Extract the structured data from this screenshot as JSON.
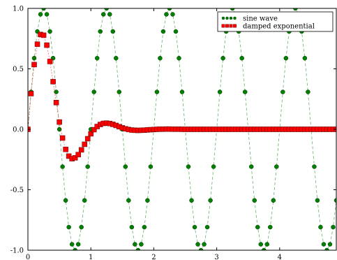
{
  "chart_data": {
    "type": "line",
    "xlim": [
      0,
      4.9
    ],
    "ylim": [
      -1.0,
      1.0
    ],
    "x_ticks": [
      0,
      1,
      2,
      3,
      4
    ],
    "y_ticks": [
      -1.0,
      -0.5,
      0.0,
      0.5,
      1.0
    ],
    "x_tick_labels": [
      "0",
      "1",
      "2",
      "3",
      "4"
    ],
    "y_tick_labels": [
      "-1.0",
      "-0.5",
      "0.0",
      "0.5",
      "1.0"
    ],
    "grid": false,
    "legend_position": "top-right",
    "x": [
      0,
      0.05,
      0.1,
      0.15,
      0.2,
      0.25,
      0.3,
      0.35,
      0.4,
      0.45,
      0.5,
      0.55,
      0.6,
      0.65,
      0.7,
      0.75,
      0.8,
      0.85,
      0.9,
      0.95,
      1.0,
      1.05,
      1.1,
      1.15,
      1.2,
      1.25,
      1.3,
      1.35,
      1.4,
      1.45,
      1.5,
      1.55,
      1.6,
      1.65,
      1.7,
      1.75,
      1.8,
      1.85,
      1.9,
      1.95,
      2.0,
      2.05,
      2.1,
      2.15,
      2.2,
      2.25,
      2.3,
      2.35,
      2.4,
      2.45,
      2.5,
      2.55,
      2.6,
      2.65,
      2.7,
      2.75,
      2.8,
      2.85,
      2.9,
      2.95,
      3.0,
      3.05,
      3.1,
      3.15,
      3.2,
      3.25,
      3.3,
      3.35,
      3.4,
      3.45,
      3.5,
      3.55,
      3.6,
      3.65,
      3.7,
      3.75,
      3.8,
      3.85,
      3.9,
      3.95,
      4.0,
      4.05,
      4.1,
      4.15,
      4.2,
      4.25,
      4.3,
      4.35,
      4.4,
      4.45,
      4.5,
      4.55,
      4.6,
      4.65,
      4.7,
      4.75,
      4.8,
      4.85,
      4.9
    ],
    "series": [
      {
        "name": "sine wave",
        "color": "#008000",
        "marker": "circle",
        "values": [
          0.0,
          0.309,
          0.588,
          0.809,
          0.951,
          1.0,
          0.951,
          0.809,
          0.588,
          0.309,
          0.0,
          -0.309,
          -0.588,
          -0.809,
          -0.951,
          -1.0,
          -0.951,
          -0.809,
          -0.588,
          -0.309,
          0.0,
          0.309,
          0.588,
          0.809,
          0.951,
          1.0,
          0.951,
          0.809,
          0.588,
          0.309,
          0.0,
          -0.309,
          -0.588,
          -0.809,
          -0.951,
          -1.0,
          -0.951,
          -0.809,
          -0.588,
          -0.309,
          0.0,
          0.309,
          0.588,
          0.809,
          0.951,
          1.0,
          0.951,
          0.809,
          0.588,
          0.309,
          0.0,
          -0.309,
          -0.588,
          -0.809,
          -0.951,
          -1.0,
          -0.951,
          -0.809,
          -0.588,
          -0.309,
          0.0,
          0.309,
          0.588,
          0.809,
          0.951,
          1.0,
          0.951,
          0.809,
          0.588,
          0.309,
          0.0,
          -0.309,
          -0.588,
          -0.809,
          -0.951,
          -1.0,
          -0.951,
          -0.809,
          -0.588,
          -0.309,
          0.0,
          0.309,
          0.588,
          0.809,
          0.951,
          1.0,
          0.951,
          0.809,
          0.588,
          0.309,
          0.0,
          -0.309,
          -0.588,
          -0.809,
          -0.951,
          -1.0,
          -0.951,
          -0.809,
          -0.588
        ]
      },
      {
        "name": "damped exponential",
        "color": "#ff0000",
        "marker": "square",
        "values": [
          0.0,
          0.295,
          0.535,
          0.704,
          0.784,
          0.778,
          0.696,
          0.561,
          0.394,
          0.221,
          0.06,
          -0.072,
          -0.166,
          -0.222,
          -0.243,
          -0.236,
          -0.209,
          -0.17,
          -0.124,
          -0.078,
          -0.037,
          -0.003,
          0.023,
          0.04,
          0.049,
          0.051,
          0.048,
          0.041,
          0.032,
          0.022,
          0.012,
          0.004,
          -0.002,
          -0.006,
          -0.008,
          -0.009,
          -0.008,
          -0.007,
          -0.005,
          -0.003,
          -0.002,
          0.0,
          0.001,
          0.001,
          0.002,
          0.002,
          0.001,
          0.001,
          0.001,
          0.0,
          0.0,
          0.0,
          0.0,
          0.0,
          0.0,
          0.0,
          0.0,
          0.0,
          0.0,
          0.0,
          0.0,
          0.0,
          0.0,
          0.0,
          0.0,
          0.0,
          0.0,
          0.0,
          0.0,
          0.0,
          0.0,
          0.0,
          0.0,
          0.0,
          0.0,
          0.0,
          0.0,
          0.0,
          0.0,
          0.0,
          0.0,
          0.0,
          0.0,
          0.0,
          0.0,
          0.0,
          0.0,
          0.0,
          0.0,
          0.0,
          0.0,
          0.0,
          0.0,
          0.0,
          0.0,
          0.0,
          0.0,
          0.0,
          0.0
        ]
      }
    ]
  }
}
